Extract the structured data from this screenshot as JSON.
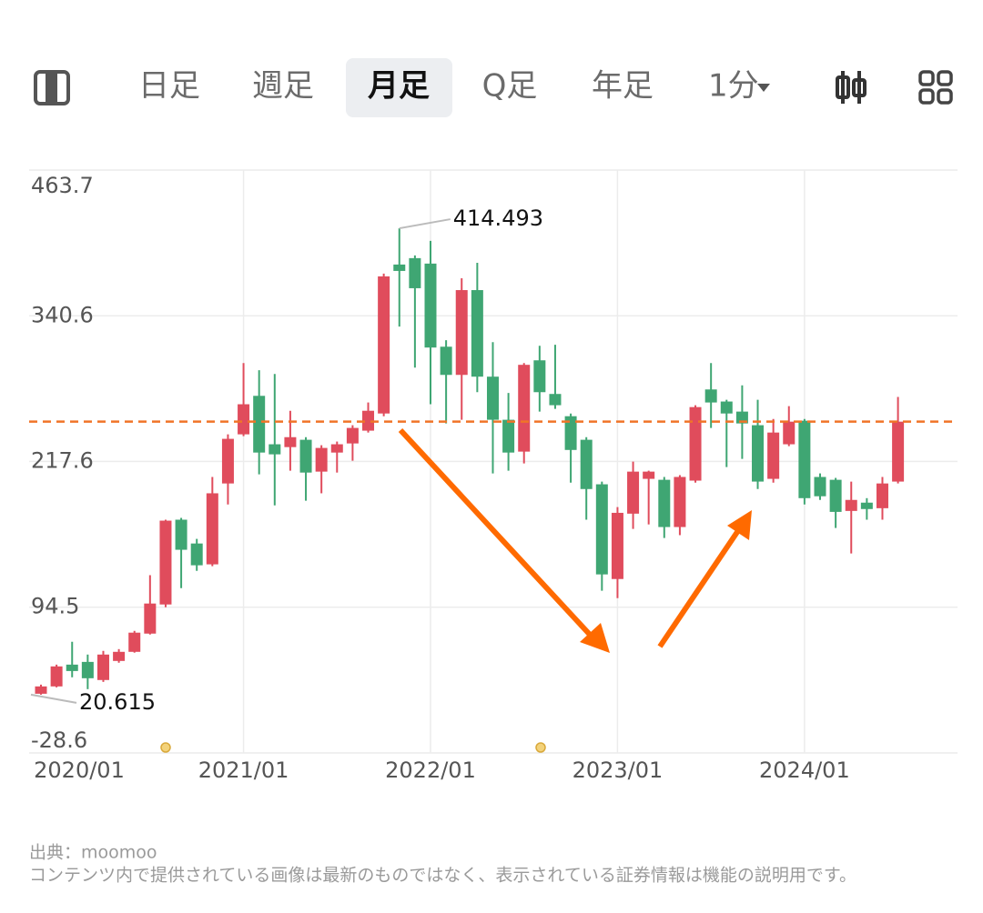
{
  "toolbar": {
    "tabs": [
      "日足",
      "週足",
      "月足",
      "Q足",
      "年足"
    ],
    "selected": 2,
    "interval": "1分"
  },
  "chart_data": {
    "type": "candlestick",
    "categories": [
      null,
      "2020/01",
      null,
      null,
      null,
      null,
      null,
      null,
      null,
      null,
      null,
      null,
      null,
      "2021/01",
      null,
      null,
      null,
      null,
      null,
      null,
      null,
      null,
      null,
      null,
      null,
      "2022/01",
      null,
      null,
      null,
      null,
      null,
      null,
      null,
      null,
      null,
      null,
      null,
      "2023/01",
      null,
      null,
      null,
      null,
      null,
      null,
      null,
      null,
      null,
      null,
      null,
      "2024/01",
      null,
      null,
      null,
      null,
      null,
      null
    ],
    "open": [
      21.4,
      27.6,
      46.0,
      48.3,
      33.0,
      49.1,
      56.8,
      72.2,
      96.8,
      168.4,
      148.3,
      130.7,
      199.0,
      240.5,
      273.0,
      232.1,
      229.7,
      235.9,
      209.0,
      225.1,
      232.8,
      243.6,
      258.1,
      383.9,
      389.3,
      384.7,
      314.5,
      290.7,
      362.3,
      289.2,
      252.8,
      225.9,
      303.0,
      274.6,
      255.8,
      235.9,
      198.3,
      118.3,
      173.5,
      202.9,
      202.1,
      162.2,
      201.4,
      278.4,
      268.2,
      259.7,
      248.2,
      202.9,
      232.1,
      252.0,
      204.5,
      202.1,
      175.8,
      182.8,
      178.1,
      200.6
    ],
    "high": [
      29.1,
      46.0,
      65.3,
      54.5,
      57.6,
      59.1,
      74.5,
      121.5,
      168.4,
      169.9,
      152.2,
      204.5,
      240.5,
      300.7,
      294.6,
      291.5,
      260.4,
      238.1,
      231.3,
      234.4,
      248.2,
      267.4,
      376.2,
      414.493,
      391.6,
      403.9,
      320.0,
      372.3,
      385.4,
      318.4,
      275.4,
      300.7,
      315.3,
      316.1,
      258.1,
      238.1,
      200.6,
      179.1,
      217.5,
      209.8,
      204.5,
      206.0,
      265.1,
      300.7,
      269.7,
      281.9,
      269.7,
      253.5,
      264.3,
      253.5,
      207.5,
      203.7,
      200.6,
      186.6,
      204.5,
      272.1
    ],
    "low": [
      20.615,
      26.8,
      35.3,
      25.3,
      31.4,
      47.6,
      56.1,
      71.4,
      94.5,
      110.6,
      125.2,
      129.1,
      181.3,
      239.0,
      206.7,
      180.5,
      209.8,
      184.4,
      190.7,
      208.2,
      218.2,
      242.0,
      255.8,
      331.5,
      296.8,
      265.9,
      249.7,
      252.8,
      276.1,
      207.5,
      209.8,
      215.9,
      259.7,
      262.0,
      199.7,
      168.4,
      108.4,
      102.2,
      160.6,
      164.4,
      152.9,
      155.3,
      199.7,
      245.9,
      212.8,
      219.8,
      194.3,
      199.7,
      230.5,
      181.3,
      185.1,
      161.4,
      139.9,
      168.4,
      168.4,
      199.0
    ],
    "close": [
      27.6,
      44.5,
      40.6,
      34.5,
      54.5,
      56.8,
      73.0,
      97.6,
      167.6,
      143.0,
      129.9,
      190.7,
      236.7,
      265.9,
      225.1,
      223.6,
      238.1,
      208.2,
      229.0,
      232.1,
      245.9,
      260.4,
      373.9,
      378.5,
      363.9,
      313.8,
      290.7,
      362.3,
      289.2,
      252.8,
      225.1,
      299.2,
      276.1,
      265.1,
      227.3,
      194.3,
      122.2,
      174.2,
      209.0,
      209.0,
      162.2,
      204.5,
      263.5,
      267.4,
      258.1,
      249.7,
      200.6,
      242.0,
      251.2,
      186.6,
      188.2,
      175.0,
      185.1,
      177.4,
      199.0,
      251.2
    ],
    "up_color": "#e04c5c",
    "down_color": "#3fa673",
    "ylim": [
      -28.6,
      463.7
    ],
    "yticks": [
      -28.6,
      94.5,
      217.6,
      340.6,
      463.7
    ],
    "grid": true,
    "price_line": 251.2,
    "price_line_color": "#f07428"
  },
  "footer": {
    "source": "出典：moomoo",
    "note": "コンテンツ内で提供されている画像は最新のものではなく、表示されている証券情報は機能の説明用です。"
  }
}
